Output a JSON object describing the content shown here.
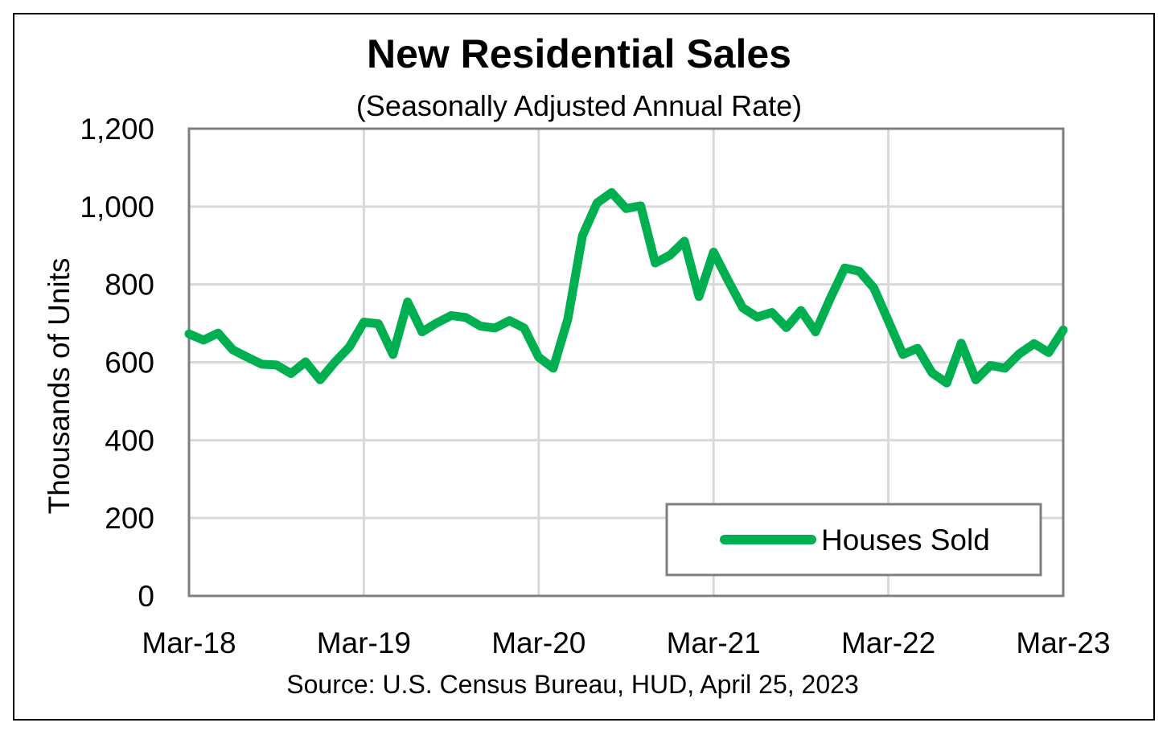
{
  "chart_data": {
    "type": "line",
    "title": "New Residential Sales",
    "subtitle": "(Seasonally Adjusted Annual Rate)",
    "ylabel": "Thousands of Units",
    "xlabel": "",
    "source": "Source:  U.S. Census Bureau, HUD, April 25, 2023",
    "ylim": [
      0,
      1200
    ],
    "yticks": [
      "0",
      "200",
      "400",
      "600",
      "800",
      "1,000",
      "1,200"
    ],
    "ytick_values": [
      0,
      200,
      400,
      600,
      800,
      1000,
      1200
    ],
    "xticks": [
      "Mar-18",
      "Mar-19",
      "Mar-20",
      "Mar-21",
      "Mar-22",
      "Mar-23"
    ],
    "xtick_index": [
      0,
      12,
      24,
      36,
      48,
      60
    ],
    "grid": true,
    "legend_position": "bottom-right",
    "color": "#00b050",
    "series": [
      {
        "name": "Houses Sold",
        "values": [
          673,
          657,
          675,
          632,
          613,
          595,
          593,
          571,
          601,
          555,
          600,
          639,
          703,
          699,
          620,
          755,
          678,
          701,
          720,
          715,
          693,
          688,
          707,
          688,
          613,
          585,
          711,
          925,
          1009,
          1036,
          995,
          1002,
          855,
          875,
          911,
          769,
          883,
          810,
          740,
          716,
          728,
          689,
          733,
          678,
          763,
          842,
          834,
          791,
          706,
          620,
          636,
          573,
          547,
          649,
          555,
          592,
          585,
          622,
          648,
          625,
          683
        ]
      }
    ]
  }
}
